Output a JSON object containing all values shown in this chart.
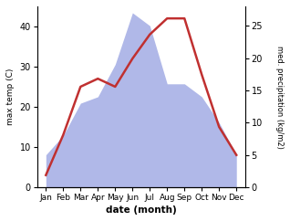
{
  "months": [
    "Jan",
    "Feb",
    "Mar",
    "Apr",
    "May",
    "Jun",
    "Jul",
    "Aug",
    "Sep",
    "Oct",
    "Nov",
    "Dec"
  ],
  "temperature": [
    3,
    13,
    25,
    27,
    25,
    32,
    38,
    42,
    42,
    28,
    15,
    8
  ],
  "precipitation": [
    5,
    8,
    13,
    14,
    19,
    27,
    25,
    16,
    16,
    14,
    10,
    5
  ],
  "temp_color": "#c03030",
  "precip_color_fill": "#b0b8e8",
  "temp_ylim": [
    0,
    45
  ],
  "precip_ylim": [
    0,
    28
  ],
  "temp_yticks": [
    0,
    10,
    20,
    30,
    40
  ],
  "precip_yticks": [
    0,
    5,
    10,
    15,
    20,
    25
  ],
  "xlabel": "date (month)",
  "ylabel_left": "max temp (C)",
  "ylabel_right": "med. precipitation (kg/m2)",
  "background_color": "#ffffff",
  "fig_width": 3.18,
  "fig_height": 2.42,
  "dpi": 100
}
